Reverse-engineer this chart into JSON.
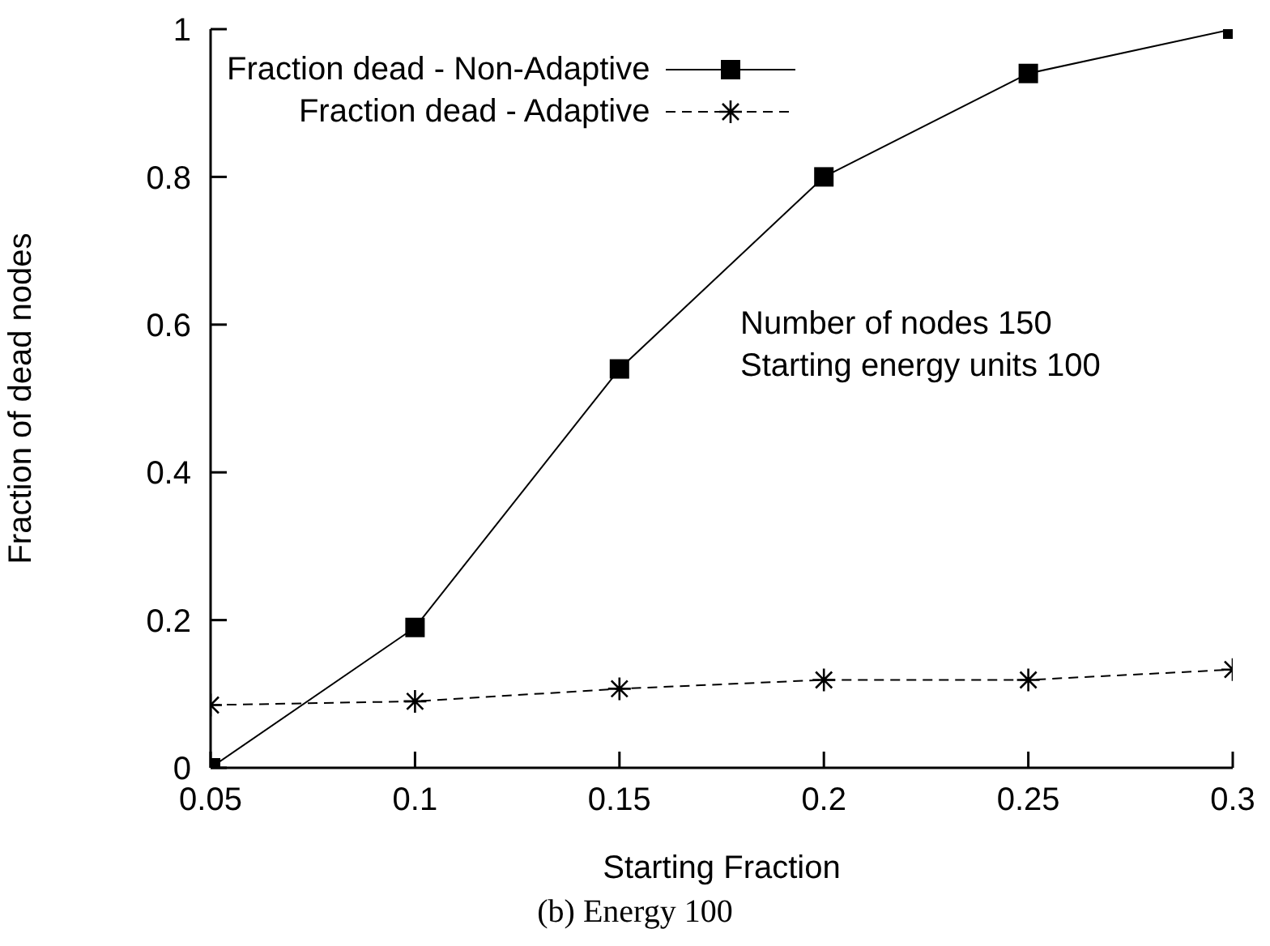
{
  "chart_data": {
    "type": "line",
    "xlabel": "Starting Fraction",
    "ylabel": "Fraction of dead nodes",
    "x": [
      0.05,
      0.1,
      0.15,
      0.2,
      0.25,
      0.3
    ],
    "series": [
      {
        "name": "Fraction dead - Non-Adaptive",
        "color": "#000000",
        "marker": "square",
        "line_style": "solid",
        "values": [
          0,
          0.19,
          0.54,
          0.8,
          0.94,
          1
        ]
      },
      {
        "name": "Fraction dead - Adaptive",
        "color": "#000000",
        "marker": "cross",
        "line_style": "dashed",
        "values": [
          0.085,
          0.09,
          0.107,
          0.119,
          0.119,
          0.133
        ]
      }
    ],
    "xlim": [
      0.05,
      0.3
    ],
    "xticks": [
      0.05,
      0.1,
      0.15,
      0.2,
      0.25,
      0.3
    ],
    "ylim": [
      0,
      1
    ],
    "yticks": [
      0,
      0.2,
      0.4,
      0.6,
      0.8,
      1
    ],
    "grid": false,
    "legend": "top left",
    "annotations": [
      "Number of nodes 150",
      "Starting energy units 100",
      "(b) Energy 100"
    ]
  }
}
